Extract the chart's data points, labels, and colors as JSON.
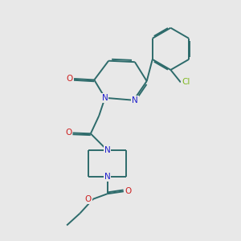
{
  "bg_color": "#e8e8e8",
  "bond_color": "#2d6b6b",
  "n_color": "#2020cc",
  "o_color": "#cc2020",
  "cl_color": "#7fb820",
  "line_width": 1.4,
  "figsize": [
    3.0,
    3.0
  ],
  "dpi": 100,
  "xlim": [
    0,
    10
  ],
  "ylim": [
    0,
    10
  ]
}
